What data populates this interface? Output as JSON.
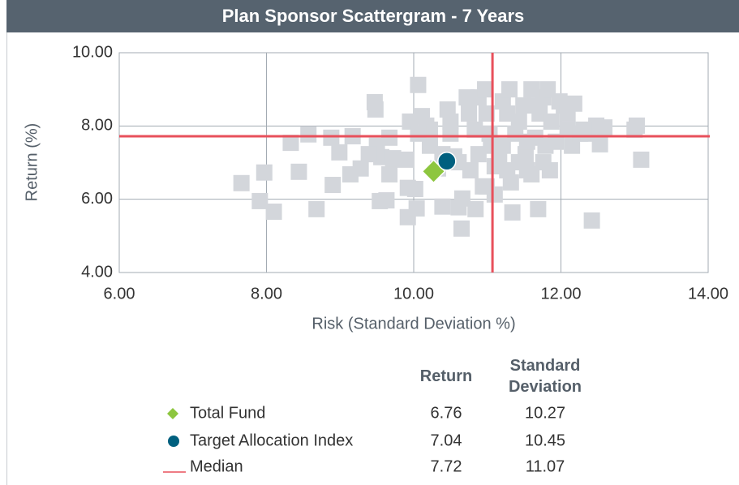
{
  "chart_data": {
    "type": "scatter",
    "title": "Plan Sponsor Scattergram - 7 Years",
    "xlabel": "Risk (Standard Deviation %)",
    "ylabel": "Return (%)",
    "xlim": [
      6,
      14
    ],
    "ylim": [
      4,
      10
    ],
    "xticks": [
      {
        "value": 6,
        "label": "6.00"
      },
      {
        "value": 8,
        "label": "8.00"
      },
      {
        "value": 10,
        "label": "10.00"
      },
      {
        "value": 12,
        "label": "12.00"
      },
      {
        "value": 14,
        "label": "14.00"
      }
    ],
    "yticks": [
      {
        "value": 4,
        "label": "4.00"
      },
      {
        "value": 6,
        "label": "6.00"
      },
      {
        "value": 8,
        "label": "8.00"
      },
      {
        "value": 10,
        "label": "10.00"
      }
    ],
    "grid": true,
    "universe": {
      "color": "#d3d6db",
      "x": [
        7.66,
        7.91,
        7.97,
        8.1,
        8.44,
        8.33,
        8.57,
        8.68,
        8.9,
        8.88,
        8.99,
        9.17,
        9.14,
        9.28,
        9.47,
        9.48,
        9.5,
        9.56,
        9.54,
        9.63,
        9.67,
        9.72,
        9.89,
        9.95,
        9.92,
        9.92,
        10.06,
        10.02,
        10.04,
        10.11,
        10.17,
        10.22,
        10.33,
        10.39,
        10.46,
        10.5,
        10.55,
        10.61,
        10.66,
        10.72,
        10.75,
        10.83,
        10.84,
        10.88,
        10.94,
        10.97,
        10.99,
        11.03,
        11.05,
        11.1,
        11.16,
        11.21,
        11.27,
        11.3,
        11.32,
        11.34,
        11.38,
        11.43,
        11.49,
        11.52,
        11.54,
        11.6,
        11.6,
        11.65,
        11.69,
        11.71,
        11.76,
        11.79,
        11.82,
        11.85,
        11.87,
        11.93,
        11.98,
        12.04,
        12.09,
        12.15,
        12.18,
        12.26,
        12.37,
        12.42,
        12.48,
        12.53,
        12.59,
        13.0,
        13.03,
        13.09,
        10.61,
        10.77,
        10.5,
        11.21,
        11.43,
        10.99,
        11.1,
        11.54,
        11.76,
        10.22,
        10.06,
        12.09,
        12.31,
        10.88,
        11.27,
        11.65,
        10.39,
        9.67,
        9.39,
        10.65
      ],
      "y": [
        6.44,
        5.95,
        6.73,
        5.66,
        6.75,
        7.54,
        7.77,
        5.73,
        6.39,
        7.68,
        7.28,
        7.72,
        6.68,
        6.84,
        8.65,
        8.45,
        7.46,
        7.15,
        5.95,
        5.97,
        6.68,
        7.12,
        7.08,
        8.12,
        6.31,
        5.51,
        9.12,
        6.28,
        5.75,
        8.27,
        8.01,
        7.46,
        6.84,
        7.23,
        8.45,
        8.12,
        7.17,
        5.78,
        6.02,
        8.78,
        8.34,
        7.9,
        5.73,
        8.78,
        6.35,
        9.0,
        8.34,
        7.79,
        7.46,
        6.9,
        7.12,
        8.67,
        8.34,
        9.0,
        6.46,
        5.64,
        7.79,
        8.12,
        8.56,
        7.23,
        6.79,
        9.0,
        6.68,
        7.68,
        5.73,
        8.34,
        8.78,
        7.46,
        9.0,
        6.79,
        8.12,
        7.57,
        8.67,
        8.56,
        7.9,
        7.46,
        8.61,
        7.79,
        7.79,
        5.42,
        8.01,
        7.5,
        7.96,
        7.9,
        8.01,
        7.08,
        7.01,
        6.79,
        7.79,
        7.46,
        7.01,
        6.35,
        6.13,
        7.57,
        7.01,
        7.9,
        7.79,
        8.34,
        7.9,
        7.23,
        6.79,
        8.56,
        5.8,
        7.68,
        7.23,
        5.2
      ]
    },
    "series": [
      {
        "name": "Total Fund",
        "color": "#8dc63f",
        "marker": "diamond",
        "x": 10.27,
        "y": 6.76
      },
      {
        "name": "Target Allocation Index",
        "color": "#00607f",
        "marker": "circle",
        "x": 10.45,
        "y": 7.04
      },
      {
        "name": "Median",
        "color": "#e8505b",
        "marker": "line",
        "x": 11.07,
        "y": 7.72
      }
    ],
    "table_headers": [
      "Return",
      "Standard Deviation"
    ]
  }
}
